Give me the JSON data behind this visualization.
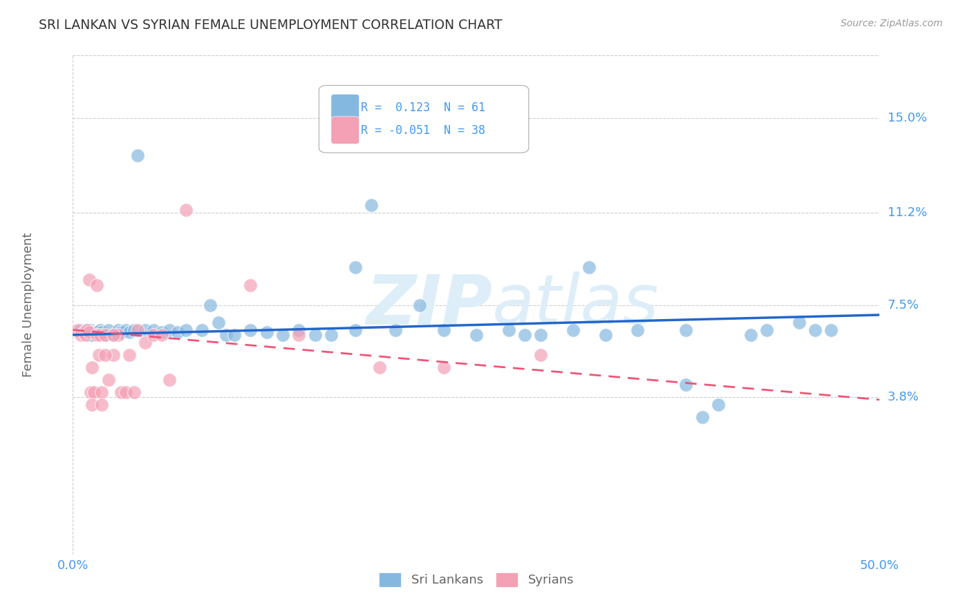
{
  "title": "SRI LANKAN VS SYRIAN FEMALE UNEMPLOYMENT CORRELATION CHART",
  "source": "Source: ZipAtlas.com",
  "ylabel": "Female Unemployment",
  "xlim": [
    0.0,
    0.5
  ],
  "ylim": [
    -0.025,
    0.175
  ],
  "ytick_values": [
    0.038,
    0.075,
    0.112,
    0.15
  ],
  "ytick_labels": [
    "3.8%",
    "7.5%",
    "11.2%",
    "15.0%"
  ],
  "xtick_positions": [
    0.0,
    0.1,
    0.2,
    0.3,
    0.4,
    0.5
  ],
  "xtick_labels": [
    "0.0%",
    "",
    "",
    "",
    "",
    "50.0%"
  ],
  "sri_lankan_color": "#85b8e0",
  "syrian_color": "#f4a0b5",
  "background_color": "#ffffff",
  "grid_color": "#cccccc",
  "title_color": "#333333",
  "axis_color": "#4499ee",
  "watermark_color": "#deeef8",
  "trend_line_blue": "#2266cc",
  "trend_line_pink": "#ee5577",
  "sl_trend_x0": 0.0,
  "sl_trend_y0": 0.063,
  "sl_trend_x1": 0.5,
  "sl_trend_y1": 0.071,
  "sy_trend_x0": 0.0,
  "sy_trend_y0": 0.065,
  "sy_trend_x1": 0.5,
  "sy_trend_y1": 0.037,
  "sl_x": [
    0.005,
    0.007,
    0.008,
    0.009,
    0.01,
    0.011,
    0.012,
    0.013,
    0.015,
    0.016,
    0.017,
    0.018,
    0.02,
    0.022,
    0.025,
    0.028,
    0.03,
    0.033,
    0.035,
    0.038,
    0.04,
    0.045,
    0.05,
    0.055,
    0.06,
    0.065,
    0.07,
    0.08,
    0.085,
    0.09,
    0.095,
    0.1,
    0.11,
    0.12,
    0.13,
    0.14,
    0.15,
    0.16,
    0.175,
    0.185,
    0.2,
    0.215,
    0.23,
    0.25,
    0.27,
    0.29,
    0.31,
    0.33,
    0.35,
    0.38,
    0.4,
    0.42,
    0.45,
    0.47,
    0.175,
    0.32,
    0.43,
    0.39,
    0.28,
    0.38,
    0.46
  ],
  "sl_y": [
    0.065,
    0.064,
    0.065,
    0.064,
    0.063,
    0.065,
    0.063,
    0.064,
    0.064,
    0.063,
    0.065,
    0.064,
    0.063,
    0.065,
    0.063,
    0.065,
    0.064,
    0.065,
    0.064,
    0.065,
    0.135,
    0.065,
    0.065,
    0.064,
    0.065,
    0.064,
    0.065,
    0.065,
    0.075,
    0.068,
    0.063,
    0.063,
    0.065,
    0.064,
    0.063,
    0.065,
    0.063,
    0.063,
    0.065,
    0.115,
    0.065,
    0.075,
    0.065,
    0.063,
    0.065,
    0.063,
    0.065,
    0.063,
    0.065,
    0.043,
    0.035,
    0.063,
    0.068,
    0.065,
    0.09,
    0.09,
    0.065,
    0.03,
    0.063,
    0.065,
    0.065
  ],
  "sy_x": [
    0.003,
    0.005,
    0.007,
    0.008,
    0.009,
    0.01,
    0.011,
    0.012,
    0.013,
    0.015,
    0.016,
    0.017,
    0.018,
    0.02,
    0.022,
    0.025,
    0.028,
    0.03,
    0.033,
    0.035,
    0.038,
    0.04,
    0.045,
    0.05,
    0.055,
    0.06,
    0.01,
    0.015,
    0.02,
    0.025,
    0.012,
    0.018,
    0.07,
    0.11,
    0.14,
    0.19,
    0.23,
    0.29
  ],
  "sy_y": [
    0.065,
    0.063,
    0.064,
    0.063,
    0.065,
    0.064,
    0.04,
    0.05,
    0.04,
    0.063,
    0.055,
    0.063,
    0.04,
    0.063,
    0.045,
    0.055,
    0.063,
    0.04,
    0.04,
    0.055,
    0.04,
    0.065,
    0.06,
    0.063,
    0.063,
    0.045,
    0.085,
    0.083,
    0.055,
    0.063,
    0.035,
    0.035,
    0.113,
    0.083,
    0.063,
    0.05,
    0.05,
    0.055
  ]
}
